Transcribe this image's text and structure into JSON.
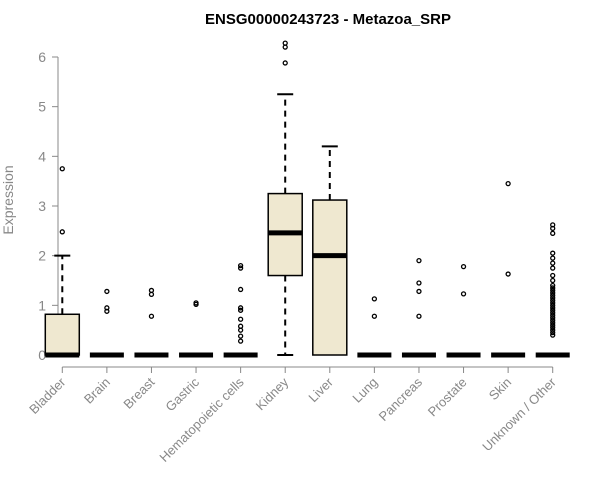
{
  "colors": {
    "box_fill": "#efe8d0",
    "box_stroke": "#000000",
    "axis": "#888888",
    "title": "#000000"
  },
  "chart_data": {
    "type": "boxplot",
    "title": "ENSG00000243723 - Metazoa_SRP",
    "xlabel": "",
    "ylabel": "Expression",
    "ylim": [
      0,
      6.3
    ],
    "yticks": [
      0,
      1,
      2,
      3,
      4,
      5,
      6
    ],
    "grid": false,
    "categories": [
      "Bladder",
      "Brain",
      "Breast",
      "Gastric",
      "Hematopoietic cells",
      "Kidney",
      "Liver",
      "Lung",
      "Pancreas",
      "Prostate",
      "Skin",
      "Unknown / Other"
    ],
    "boxes": [
      {
        "q1": 0,
        "median": 0,
        "q3": 0.82,
        "whisker_low": 0,
        "whisker_high": 2.0,
        "outliers": [
          2.48,
          3.75
        ]
      },
      {
        "q1": 0,
        "median": 0,
        "q3": 0,
        "whisker_low": 0,
        "whisker_high": 0,
        "outliers": [
          0.88,
          0.95,
          1.28
        ]
      },
      {
        "q1": 0,
        "median": 0,
        "q3": 0,
        "whisker_low": 0,
        "whisker_high": 0,
        "outliers": [
          0.78,
          1.22,
          1.3
        ]
      },
      {
        "q1": 0,
        "median": 0,
        "q3": 0,
        "whisker_low": 0,
        "whisker_high": 0,
        "outliers": [
          1.02,
          1.05
        ]
      },
      {
        "q1": 0,
        "median": 0,
        "q3": 0,
        "whisker_low": 0,
        "whisker_high": 0,
        "outliers": [
          0.28,
          0.38,
          0.5,
          0.58,
          0.72,
          0.9,
          0.95,
          1.32,
          1.75,
          1.8
        ]
      },
      {
        "q1": 1.6,
        "median": 2.46,
        "q3": 3.25,
        "whisker_low": 0,
        "whisker_high": 5.25,
        "outliers": [
          5.88,
          6.2,
          6.28
        ]
      },
      {
        "q1": 0,
        "median": 2.0,
        "q3": 3.12,
        "whisker_low": 0,
        "whisker_high": 4.2,
        "outliers": []
      },
      {
        "q1": 0,
        "median": 0,
        "q3": 0,
        "whisker_low": 0,
        "whisker_high": 0,
        "outliers": [
          0.78,
          1.13
        ]
      },
      {
        "q1": 0,
        "median": 0,
        "q3": 0,
        "whisker_low": 0,
        "whisker_high": 0,
        "outliers": [
          0.78,
          1.28,
          1.45,
          1.9
        ]
      },
      {
        "q1": 0,
        "median": 0,
        "q3": 0,
        "whisker_low": 0,
        "whisker_high": 0,
        "outliers": [
          1.23,
          1.78
        ]
      },
      {
        "q1": 0,
        "median": 0,
        "q3": 0,
        "whisker_low": 0,
        "whisker_high": 0,
        "outliers": [
          1.63,
          3.45
        ]
      },
      {
        "q1": 0,
        "median": 0,
        "q3": 0,
        "whisker_low": 0,
        "whisker_high": 0,
        "outliers": [
          0.4,
          0.45,
          0.5,
          0.55,
          0.6,
          0.65,
          0.7,
          0.75,
          0.8,
          0.85,
          0.9,
          0.95,
          1.0,
          1.05,
          1.1,
          1.15,
          1.2,
          1.25,
          1.3,
          1.35,
          1.4,
          1.5,
          1.6,
          1.75,
          1.85,
          1.95,
          2.05,
          2.45,
          2.55,
          2.62
        ]
      }
    ]
  }
}
